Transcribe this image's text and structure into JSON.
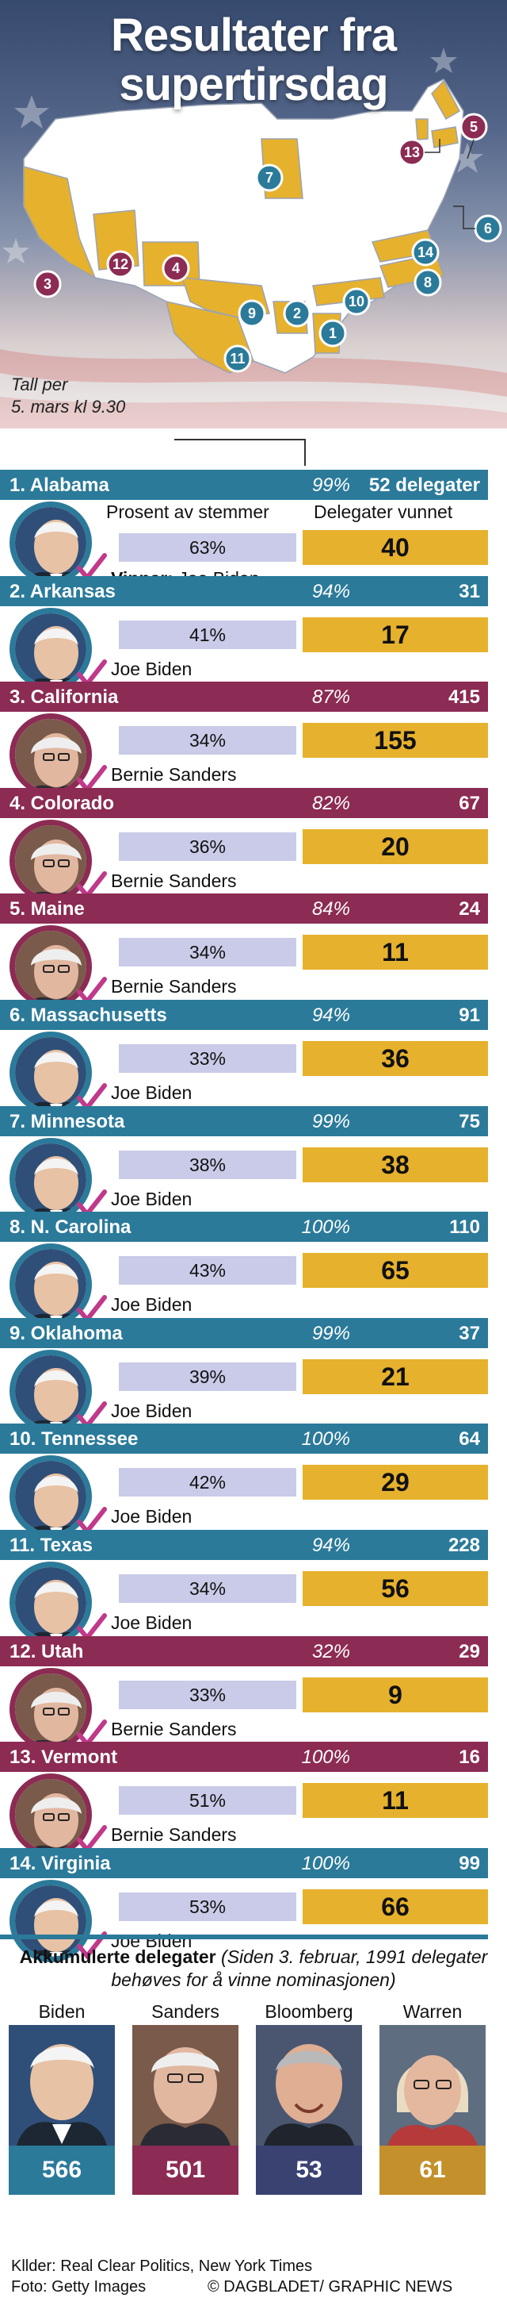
{
  "title": "Resultater fra supertirsdag",
  "timestamp": {
    "line1": "Tall per",
    "line2": "5. mars kl 9.30"
  },
  "column_headers": {
    "votes": "Prosent av stemmer",
    "delegates": "Delegater vunnet"
  },
  "winner_prefix": "Vinner:",
  "first_row_suffix": "delegater",
  "colors": {
    "biden": "#2b7a9a",
    "sanders": "#8c2b53",
    "bloomberg": "#3a4272",
    "warren": "#c3902b",
    "vote_bar": "#c9cbe8",
    "delegate_bar": "#e6b12d",
    "map_won": "#e6b12d",
    "map_other": "#ffffff"
  },
  "map_markers": [
    {
      "n": "1",
      "winner": "biden"
    },
    {
      "n": "2",
      "winner": "biden"
    },
    {
      "n": "3",
      "winner": "sanders"
    },
    {
      "n": "4",
      "winner": "sanders"
    },
    {
      "n": "5",
      "winner": "sanders"
    },
    {
      "n": "6",
      "winner": "biden"
    },
    {
      "n": "7",
      "winner": "biden"
    },
    {
      "n": "8",
      "winner": "biden"
    },
    {
      "n": "9",
      "winner": "biden"
    },
    {
      "n": "10",
      "winner": "biden"
    },
    {
      "n": "11",
      "winner": "biden"
    },
    {
      "n": "12",
      "winner": "sanders"
    },
    {
      "n": "13",
      "winner": "sanders"
    },
    {
      "n": "14",
      "winner": "biden"
    }
  ],
  "states": [
    {
      "name": "1. Alabama",
      "reported": "99%",
      "delegates": "52",
      "vote_pct": "63%",
      "won": "40",
      "winner": "Joe Biden",
      "color": "teal"
    },
    {
      "name": "2. Arkansas",
      "reported": "94%",
      "delegates": "31",
      "vote_pct": "41%",
      "won": "17",
      "winner": "Joe Biden",
      "color": "teal"
    },
    {
      "name": "3. California",
      "reported": "87%",
      "delegates": "415",
      "vote_pct": "34%",
      "won": "155",
      "winner": "Bernie Sanders",
      "color": "maroon"
    },
    {
      "name": "4. Colorado",
      "reported": "82%",
      "delegates": "67",
      "vote_pct": "36%",
      "won": "20",
      "winner": "Bernie Sanders",
      "color": "maroon"
    },
    {
      "name": "5. Maine",
      "reported": "84%",
      "delegates": "24",
      "vote_pct": "34%",
      "won": "11",
      "winner": "Bernie Sanders",
      "color": "maroon"
    },
    {
      "name": "6. Massachusetts",
      "reported": "94%",
      "delegates": "91",
      "vote_pct": "33%",
      "won": "36",
      "winner": "Joe Biden",
      "color": "teal"
    },
    {
      "name": "7. Minnesota",
      "reported": "99%",
      "delegates": "75",
      "vote_pct": "38%",
      "won": "38",
      "winner": "Joe Biden",
      "color": "teal"
    },
    {
      "name": "8. N. Carolina",
      "reported": "100%",
      "delegates": "110",
      "vote_pct": "43%",
      "won": "65",
      "winner": "Joe Biden",
      "color": "teal"
    },
    {
      "name": "9. Oklahoma",
      "reported": "99%",
      "delegates": "37",
      "vote_pct": "39%",
      "won": "21",
      "winner": "Joe Biden",
      "color": "teal"
    },
    {
      "name": "10. Tennessee",
      "reported": "100%",
      "delegates": "64",
      "vote_pct": "42%",
      "won": "29",
      "winner": "Joe Biden",
      "color": "teal"
    },
    {
      "name": "11. Texas",
      "reported": "94%",
      "delegates": "228",
      "vote_pct": "34%",
      "won": "56",
      "winner": "Joe Biden",
      "color": "teal"
    },
    {
      "name": "12. Utah",
      "reported": "32%",
      "delegates": "29",
      "vote_pct": "33%",
      "won": "9",
      "winner": "Bernie Sanders",
      "color": "maroon"
    },
    {
      "name": "13. Vermont",
      "reported": "100%",
      "delegates": "16",
      "vote_pct": "51%",
      "won": "11",
      "winner": "Bernie Sanders",
      "color": "maroon"
    },
    {
      "name": "14. Virginia",
      "reported": "100%",
      "delegates": "99",
      "vote_pct": "53%",
      "won": "66",
      "winner": "Joe Biden",
      "color": "teal"
    }
  ],
  "cumulative": {
    "heading": "Akkumulerte delegater",
    "note": "(Siden 3. februar, 1991 delegater behøves for å vinne nominasjonen)",
    "candidates": [
      {
        "name": "Biden",
        "value": "566",
        "color": "#2b7a9a"
      },
      {
        "name": "Sanders",
        "value": "501",
        "color": "#8c2b53"
      },
      {
        "name": "Bloomberg",
        "value": "53",
        "color": "#3a4272"
      },
      {
        "name": "Warren",
        "value": "61",
        "color": "#c3902b"
      }
    ]
  },
  "sources": "Kllder: Real Clear Politics, New York Times",
  "photo_credit": "Foto: Getty Images",
  "copyright": "© DAGBLADET/ GRAPHIC NEWS"
}
